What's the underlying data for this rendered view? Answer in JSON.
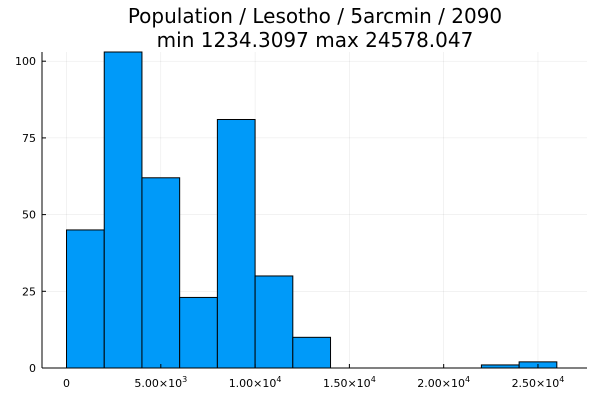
{
  "chart_data": {
    "type": "bar",
    "title": "Population / Lesotho / 5arcmin / 2090",
    "subtitle": "min 1234.3097  max 24578.047",
    "xlabel": "",
    "ylabel": "",
    "bin_edges": [
      0,
      2000,
      4000,
      6000,
      8000,
      10000,
      12000,
      14000,
      16000,
      18000,
      20000,
      22000,
      24000,
      26000
    ],
    "values": [
      45,
      103,
      62,
      23,
      81,
      30,
      10,
      0,
      0,
      0,
      0,
      1,
      2
    ],
    "xlim": [
      -1300,
      27600
    ],
    "ylim": [
      0,
      103
    ],
    "x_ticks": [
      {
        "value": 0,
        "mantissa": "0",
        "exponent": ""
      },
      {
        "value": 5000,
        "mantissa": "5.00×10",
        "exponent": "3"
      },
      {
        "value": 10000,
        "mantissa": "1.00×10",
        "exponent": "4"
      },
      {
        "value": 15000,
        "mantissa": "1.50×10",
        "exponent": "4"
      },
      {
        "value": 20000,
        "mantissa": "2.00×10",
        "exponent": "4"
      },
      {
        "value": 25000,
        "mantissa": "2.50×10",
        "exponent": "4"
      }
    ],
    "y_ticks": [
      {
        "value": 0,
        "label": "0"
      },
      {
        "value": 25,
        "label": "25"
      },
      {
        "value": 50,
        "label": "50"
      },
      {
        "value": 75,
        "label": "75"
      },
      {
        "value": 100,
        "label": "100"
      }
    ],
    "grid": true,
    "legend": "none",
    "colors": {
      "bar_fill": "#009af9",
      "bar_stroke": "#000000"
    }
  }
}
